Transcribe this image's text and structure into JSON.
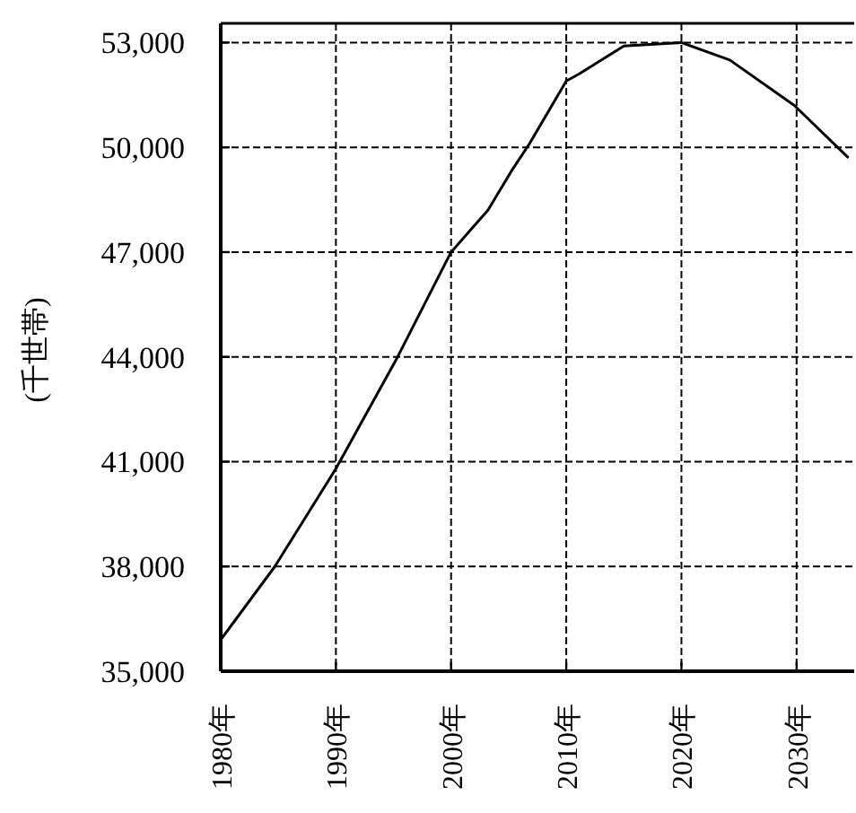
{
  "chart_data": {
    "type": "line",
    "ylabel": "(千世帯)",
    "x": [
      1980,
      1984.7,
      1990,
      1995.2,
      2000,
      2003.2,
      2005.2,
      2006.8,
      2010,
      2011.1,
      2015,
      2020,
      2024.2,
      2029.8,
      2034.5
    ],
    "series": [
      {
        "color": "#000000",
        "values": [
          35900,
          38000,
          40800,
          43900,
          47000,
          48200,
          49300,
          50100,
          51900,
          52100,
          52900,
          53000,
          52500,
          51200,
          49700
        ]
      }
    ],
    "xlim": [
      1980,
      2035
    ],
    "xticks": [
      {
        "value": 1980,
        "label": "1980年"
      },
      {
        "value": 1990,
        "label": "1990年"
      },
      {
        "value": 2000,
        "label": "2000年"
      },
      {
        "value": 2010,
        "label": "2010年"
      },
      {
        "value": 2020,
        "label": "2020年"
      },
      {
        "value": 2030,
        "label": "2030年"
      }
    ],
    "ylim": [
      35000,
      53550
    ],
    "yticks": [
      {
        "value": 35000,
        "label": "35,000"
      },
      {
        "value": 38000,
        "label": "38,000"
      },
      {
        "value": 41000,
        "label": "41,000"
      },
      {
        "value": 44000,
        "label": "44,000"
      },
      {
        "value": 47000,
        "label": "47,000"
      },
      {
        "value": 50000,
        "label": "50,000"
      },
      {
        "value": 53000,
        "label": "53,000"
      }
    ],
    "grid": true,
    "marker": "none",
    "line_style": "solid"
  }
}
